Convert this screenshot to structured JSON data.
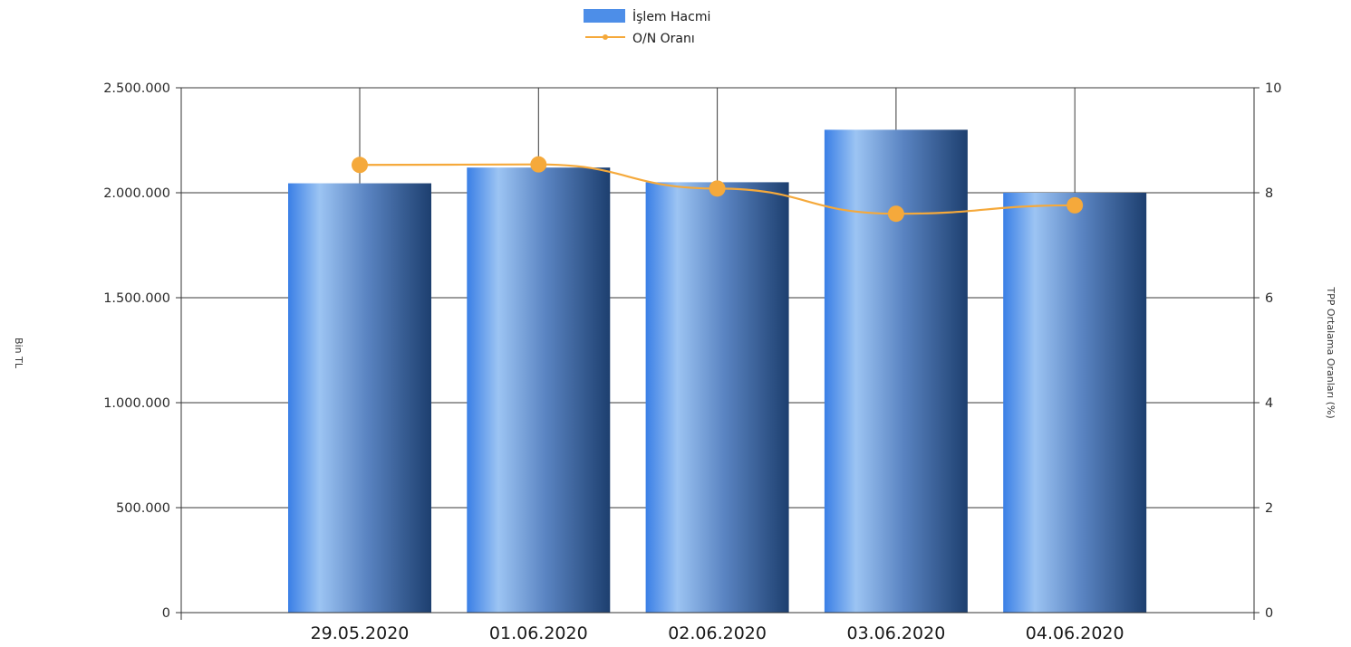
{
  "chart_data": {
    "type": "bar",
    "categories": [
      "29.05.2020",
      "01.06.2020",
      "02.06.2020",
      "03.06.2020",
      "04.06.2020"
    ],
    "series": [
      {
        "name": "İşlem Hacmi",
        "type": "bar",
        "axis": "left",
        "color": "#3f7fe0",
        "values": [
          2045000,
          2120000,
          2050000,
          2300000,
          2000000
        ]
      },
      {
        "name": "O/N Oranı",
        "type": "line",
        "axis": "right",
        "color": "#f5a93b",
        "values": [
          8.53,
          8.54,
          8.08,
          7.6,
          7.76
        ]
      }
    ],
    "ylabel": "Bin TL",
    "y2label": "TPP Ortalama Oranları (%)",
    "ylim": [
      0,
      2500000
    ],
    "y2lim": [
      0,
      10
    ],
    "yticks": [
      {
        "value": 0,
        "label": "0"
      },
      {
        "value": 500000,
        "label": "500.000"
      },
      {
        "value": 1000000,
        "label": "1.000.000"
      },
      {
        "value": 1500000,
        "label": "1.500.000"
      },
      {
        "value": 2000000,
        "label": "2.000.000"
      },
      {
        "value": 2500000,
        "label": "2.500.000"
      }
    ],
    "y2ticks": [
      {
        "value": 0,
        "label": "0"
      },
      {
        "value": 2,
        "label": "2"
      },
      {
        "value": 4,
        "label": "4"
      },
      {
        "value": 6,
        "label": "6"
      },
      {
        "value": 8,
        "label": "8"
      },
      {
        "value": 10,
        "label": "10"
      }
    ],
    "grid": true,
    "legend": "top-center"
  }
}
